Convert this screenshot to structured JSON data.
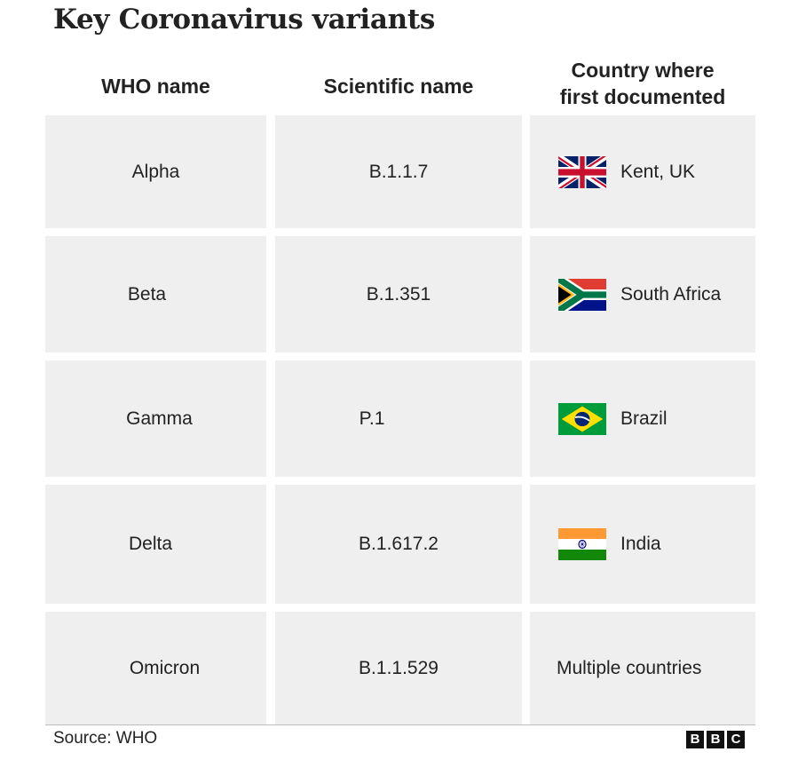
{
  "title": "Key Coronavirus variants",
  "headers": {
    "who_name": "WHO name",
    "scientific_name": "Scientific name",
    "country_line1": "Country where",
    "country_line2": "first documented"
  },
  "rows": [
    {
      "who": "Alpha",
      "scientific": "B.1.1.7",
      "country": "Kent, UK",
      "flag": "uk-flag-icon"
    },
    {
      "who": "Beta",
      "scientific": "B.1.351",
      "country": "South Africa",
      "flag": "south-africa-flag-icon"
    },
    {
      "who": "Gamma",
      "scientific": "P.1",
      "country": "Brazil",
      "flag": "brazil-flag-icon"
    },
    {
      "who": "Delta",
      "scientific": "B.1.617.2",
      "country": "India",
      "flag": "india-flag-icon"
    },
    {
      "who": "Omicron",
      "scientific": "B.1.1.529",
      "country": "Multiple countries",
      "flag": null
    }
  ],
  "footer": {
    "source": "Source: WHO",
    "logo": [
      "B",
      "B",
      "C"
    ]
  },
  "colors": {
    "cell_background": "#efefef",
    "text": "#222222"
  }
}
